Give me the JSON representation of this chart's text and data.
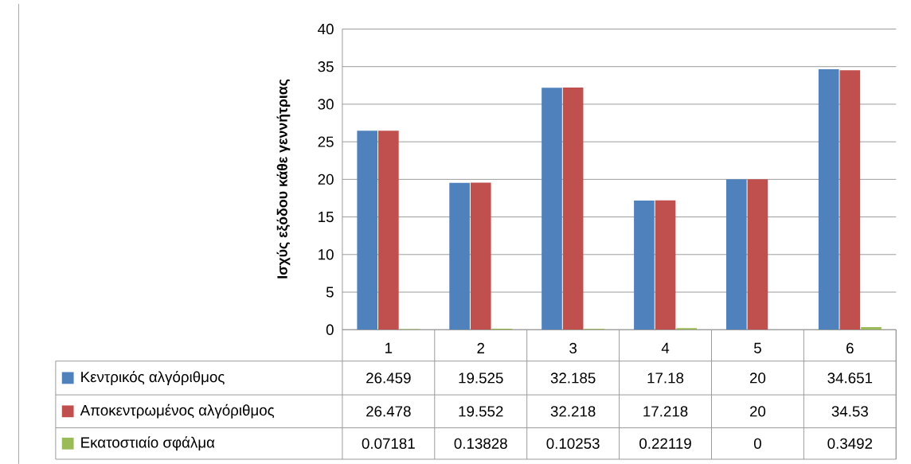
{
  "chart_data": {
    "type": "bar",
    "ylabel": "Ισχύς εξόδου κάθε γεννήτριας",
    "categories": [
      "1",
      "2",
      "3",
      "4",
      "5",
      "6"
    ],
    "series": [
      {
        "name": "Κεντρικός αλγόριθμος",
        "color": "#4f81bd",
        "values": [
          26.459,
          19.525,
          32.185,
          17.18,
          20,
          34.651
        ]
      },
      {
        "name": "Αποκεντρωμένος αλγόριθμος",
        "color": "#c0504d",
        "values": [
          26.478,
          19.552,
          32.218,
          17.218,
          20,
          34.53
        ]
      },
      {
        "name": "Εκατοστιαίο σφάλμα",
        "color": "#9bbb59",
        "values": [
          0.07181,
          0.13828,
          0.10253,
          0.22119,
          0,
          0.3492
        ]
      }
    ],
    "ylim": [
      0,
      40
    ],
    "yticks": [
      0,
      5,
      10,
      15,
      20,
      25,
      30,
      35,
      40
    ],
    "grid": "y",
    "legend": "bottom",
    "data_labels": true
  }
}
